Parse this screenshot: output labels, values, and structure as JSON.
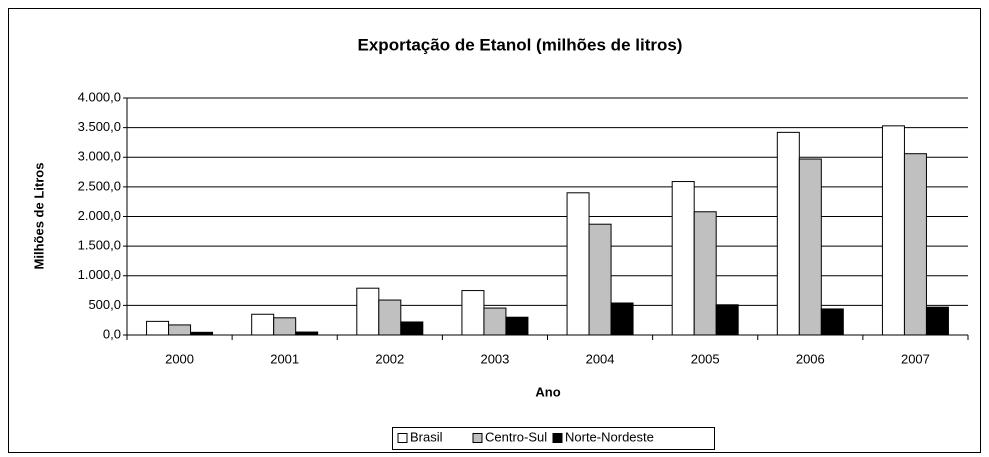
{
  "chart_data": {
    "type": "bar",
    "title": "Exportação de Etanol (milhões de litros)",
    "xlabel": "Ano",
    "ylabel": "Milhões de Litros",
    "categories": [
      "2000",
      "2001",
      "2002",
      "2003",
      "2004",
      "2005",
      "2006",
      "2007"
    ],
    "series": [
      {
        "name": "Brasil",
        "color": "#ffffff",
        "values": [
          230,
          350,
          790,
          750,
          2400,
          2590,
          3420,
          3530
        ]
      },
      {
        "name": "Centro-Sul",
        "color": "#c0c0c0",
        "values": [
          170,
          290,
          590,
          455,
          1870,
          2080,
          2970,
          3060
        ]
      },
      {
        "name": "Norte-Nordeste",
        "color": "#000000",
        "values": [
          45,
          50,
          220,
          300,
          540,
          510,
          440,
          470
        ]
      }
    ],
    "ylim": [
      0,
      4000
    ],
    "yticks": [
      {
        "value": 0,
        "label": "0,0"
      },
      {
        "value": 500,
        "label": "500,0"
      },
      {
        "value": 1000,
        "label": "1.000,0"
      },
      {
        "value": 1500,
        "label": "1.500,0"
      },
      {
        "value": 2000,
        "label": "2.000,0"
      },
      {
        "value": 2500,
        "label": "2.500,0"
      },
      {
        "value": 3000,
        "label": "3.000,0"
      },
      {
        "value": 3500,
        "label": "3.500,0"
      },
      {
        "value": 4000,
        "label": "4.000,0"
      }
    ],
    "grid": true,
    "legend": "bottom"
  }
}
